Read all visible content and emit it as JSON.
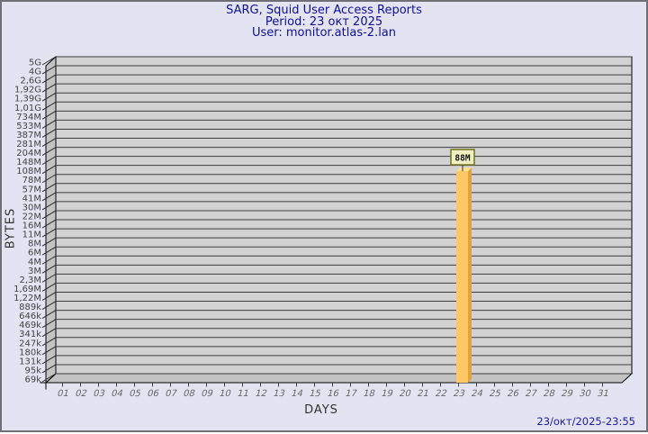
{
  "title": {
    "line1": "SARG, Squid User Access Reports",
    "line2": "Period: 23 окт 2025",
    "line3": "User: monitor.atlas-2.lan"
  },
  "footer": {
    "timestamp": "23/окт/2025-23:55"
  },
  "colors": {
    "background": "#e3e3f2",
    "border": "#6f6f78",
    "title_text": "#0f0f99",
    "plot_bg": "#d2d2d2",
    "wall": "#c3c3c3",
    "gridline": "#3d3d3d",
    "axis_line": "#000000",
    "y_tick_text": "#444444",
    "x_tick_text": "#666666",
    "axis_title_text": "#333333",
    "bar_front": "#fdc765",
    "bar_side": "#e2a33c",
    "bar_top": "#f9df92",
    "value_box_bg": "#f0efc0",
    "value_box_border": "#72721f",
    "value_text": "#111111",
    "timestamp_text": "#1c1c9e"
  },
  "chart_data": {
    "type": "bar",
    "title": "SARG, Squid User Access Reports",
    "subtitle": [
      "Period: 23 окт 2025",
      "User: monitor.atlas-2.lan"
    ],
    "xlabel": "DAYS",
    "ylabel": "BYTES",
    "y_scale": "log",
    "grid": true,
    "legend_position": "none",
    "y_max_bytes": 5000000000,
    "y_min_bytes": 69000,
    "x_ticks": [
      "01",
      "02",
      "03",
      "04",
      "05",
      "06",
      "07",
      "08",
      "09",
      "10",
      "11",
      "12",
      "13",
      "14",
      "15",
      "16",
      "17",
      "18",
      "19",
      "20",
      "21",
      "22",
      "23",
      "24",
      "25",
      "26",
      "27",
      "28",
      "29",
      "30",
      "31"
    ],
    "y_ticks_top_to_bottom": [
      "5G",
      "4G",
      "2,6G",
      "1,92G",
      "1,39G",
      "1,01G",
      "734M",
      "533M",
      "387M",
      "281M",
      "204M",
      "148M",
      "108M",
      "78M",
      "57M",
      "41M",
      "30M",
      "22M",
      "16M",
      "11M",
      "8M",
      "6M",
      "4M",
      "3M",
      "2,3M",
      "1,69M",
      "1,22M",
      "889k",
      "646k",
      "469k",
      "341k",
      "247k",
      "180k",
      "131k",
      "95k",
      "69k"
    ],
    "bars": [
      {
        "day": "23",
        "value_label": "88M",
        "bytes": 88000000
      }
    ]
  }
}
